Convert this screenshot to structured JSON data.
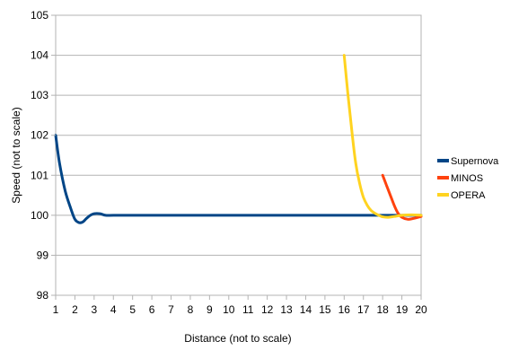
{
  "chart_data": {
    "type": "line",
    "title": "",
    "xlabel": "Distance (not to scale)",
    "ylabel": "Speed (not to scale)",
    "xlim": [
      1,
      20
    ],
    "ylim": [
      98,
      105
    ],
    "x_ticks": [
      "1",
      "2",
      "3",
      "4",
      "5",
      "6",
      "7",
      "8",
      "9",
      "10",
      "11",
      "12",
      "13",
      "14",
      "15",
      "16",
      "17",
      "18",
      "19",
      "20"
    ],
    "y_ticks": [
      "98",
      "99",
      "100",
      "101",
      "102",
      "103",
      "104",
      "105"
    ],
    "grid": "horizontal",
    "legend_position": "right",
    "series": [
      {
        "name": "Supernova",
        "color": "#004586",
        "x": [
          1,
          1.2,
          1.5,
          1.8,
          2.0,
          2.2,
          2.4,
          2.6,
          2.8,
          3.0,
          3.3,
          3.6,
          4.0,
          5,
          10,
          15,
          18,
          19,
          20
        ],
        "y": [
          102,
          101.3,
          100.6,
          100.15,
          99.9,
          99.82,
          99.83,
          99.92,
          100.0,
          100.04,
          100.04,
          100.0,
          100.0,
          100.0,
          100.0,
          100.0,
          100.0,
          100.0,
          100.0
        ]
      },
      {
        "name": "MINOS",
        "color": "#ff420e",
        "x": [
          18.0,
          18.2,
          18.4,
          18.6,
          18.8,
          19.0,
          19.3,
          19.6,
          20.0
        ],
        "y": [
          101.0,
          100.75,
          100.5,
          100.25,
          100.05,
          99.95,
          99.9,
          99.92,
          99.97
        ]
      },
      {
        "name": "OPERA",
        "color": "#ffd320",
        "x": [
          16.0,
          16.2,
          16.4,
          16.6,
          16.8,
          17.0,
          17.2,
          17.4,
          17.6,
          17.8,
          18.0,
          18.3,
          18.6,
          19.0,
          19.5,
          20.0
        ],
        "y": [
          104.0,
          103.0,
          102.1,
          101.3,
          100.8,
          100.45,
          100.25,
          100.12,
          100.05,
          100.0,
          99.96,
          99.95,
          99.97,
          100.0,
          100.01,
          100.0
        ]
      }
    ]
  }
}
